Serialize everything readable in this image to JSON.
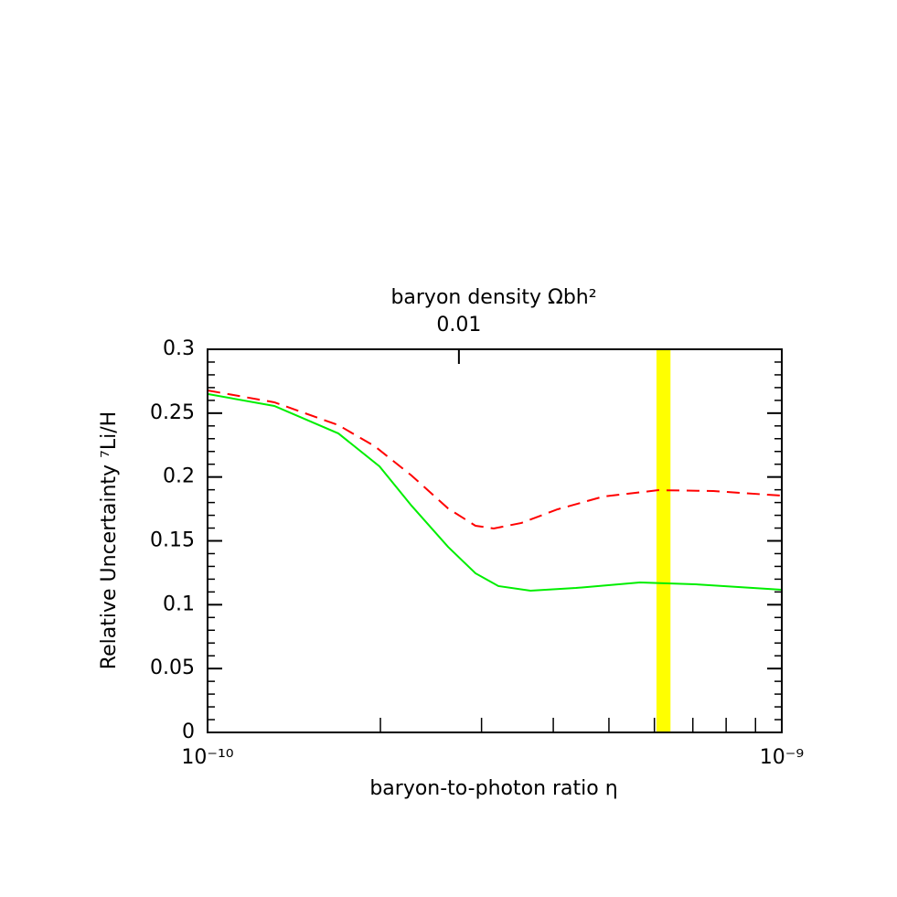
{
  "chart_data": {
    "type": "line",
    "x2label": "baryon density Ωbh²",
    "xlabel": "baryon-to-photon ratio  η",
    "ylabel": "Relative Uncertainty ⁷Li/H",
    "xscale": "log",
    "xlim": [
      1e-10,
      1e-09
    ],
    "xticks": [
      {
        "value": 1e-10,
        "label": "10⁻¹⁰"
      },
      {
        "value": 1e-09,
        "label": "10⁻⁹"
      }
    ],
    "xticks_minor": [
      2e-10,
      3e-10,
      4e-10,
      5e-10,
      6e-10,
      7e-10,
      8e-10,
      9e-10
    ],
    "x2lim": [
      0.00365,
      0.0365
    ],
    "x2ticks": [
      0.01
    ],
    "ylim": [
      0,
      0.3
    ],
    "yticks": [
      0,
      0.05,
      0.1,
      0.15,
      0.2,
      0.25,
      0.3
    ],
    "yticks_minor": [
      0.01,
      0.02,
      0.03,
      0.04,
      0.06,
      0.07,
      0.08,
      0.09,
      0.11,
      0.12,
      0.13,
      0.14,
      0.16,
      0.17,
      0.18,
      0.19,
      0.21,
      0.22,
      0.23,
      0.24,
      0.26,
      0.27,
      0.28,
      0.29
    ],
    "band": {
      "xmin": 6.05e-10,
      "xmax": 6.4e-10,
      "color": "#ffff00"
    },
    "series": [
      {
        "color": "#ff0000",
        "dash": true,
        "x": [
          1e-10,
          1.307e-10,
          1.69e-10,
          1.956e-10,
          2.265e-10,
          2.623e-10,
          2.928e-10,
          3.15e-10,
          3.52e-10,
          4.07e-10,
          4.89e-10,
          6.1e-10,
          7.6e-10,
          1e-09
        ],
        "values": [
          0.2678,
          0.2585,
          0.2406,
          0.224,
          0.2012,
          0.1754,
          0.1618,
          0.1597,
          0.164,
          0.1747,
          0.1847,
          0.1897,
          0.189,
          0.1854
        ]
      },
      {
        "color": "#00ee00",
        "dash": false,
        "x": [
          1e-10,
          1.307e-10,
          1.69e-10,
          1.993e-10,
          2.265e-10,
          2.623e-10,
          2.928e-10,
          3.21e-10,
          3.65e-10,
          4.38e-10,
          5.66e-10,
          7.06e-10,
          1e-09
        ],
        "values": [
          0.265,
          0.2556,
          0.2341,
          0.2083,
          0.1776,
          0.1453,
          0.1246,
          0.1146,
          0.111,
          0.1131,
          0.1174,
          0.116,
          0.1117
        ]
      }
    ]
  }
}
